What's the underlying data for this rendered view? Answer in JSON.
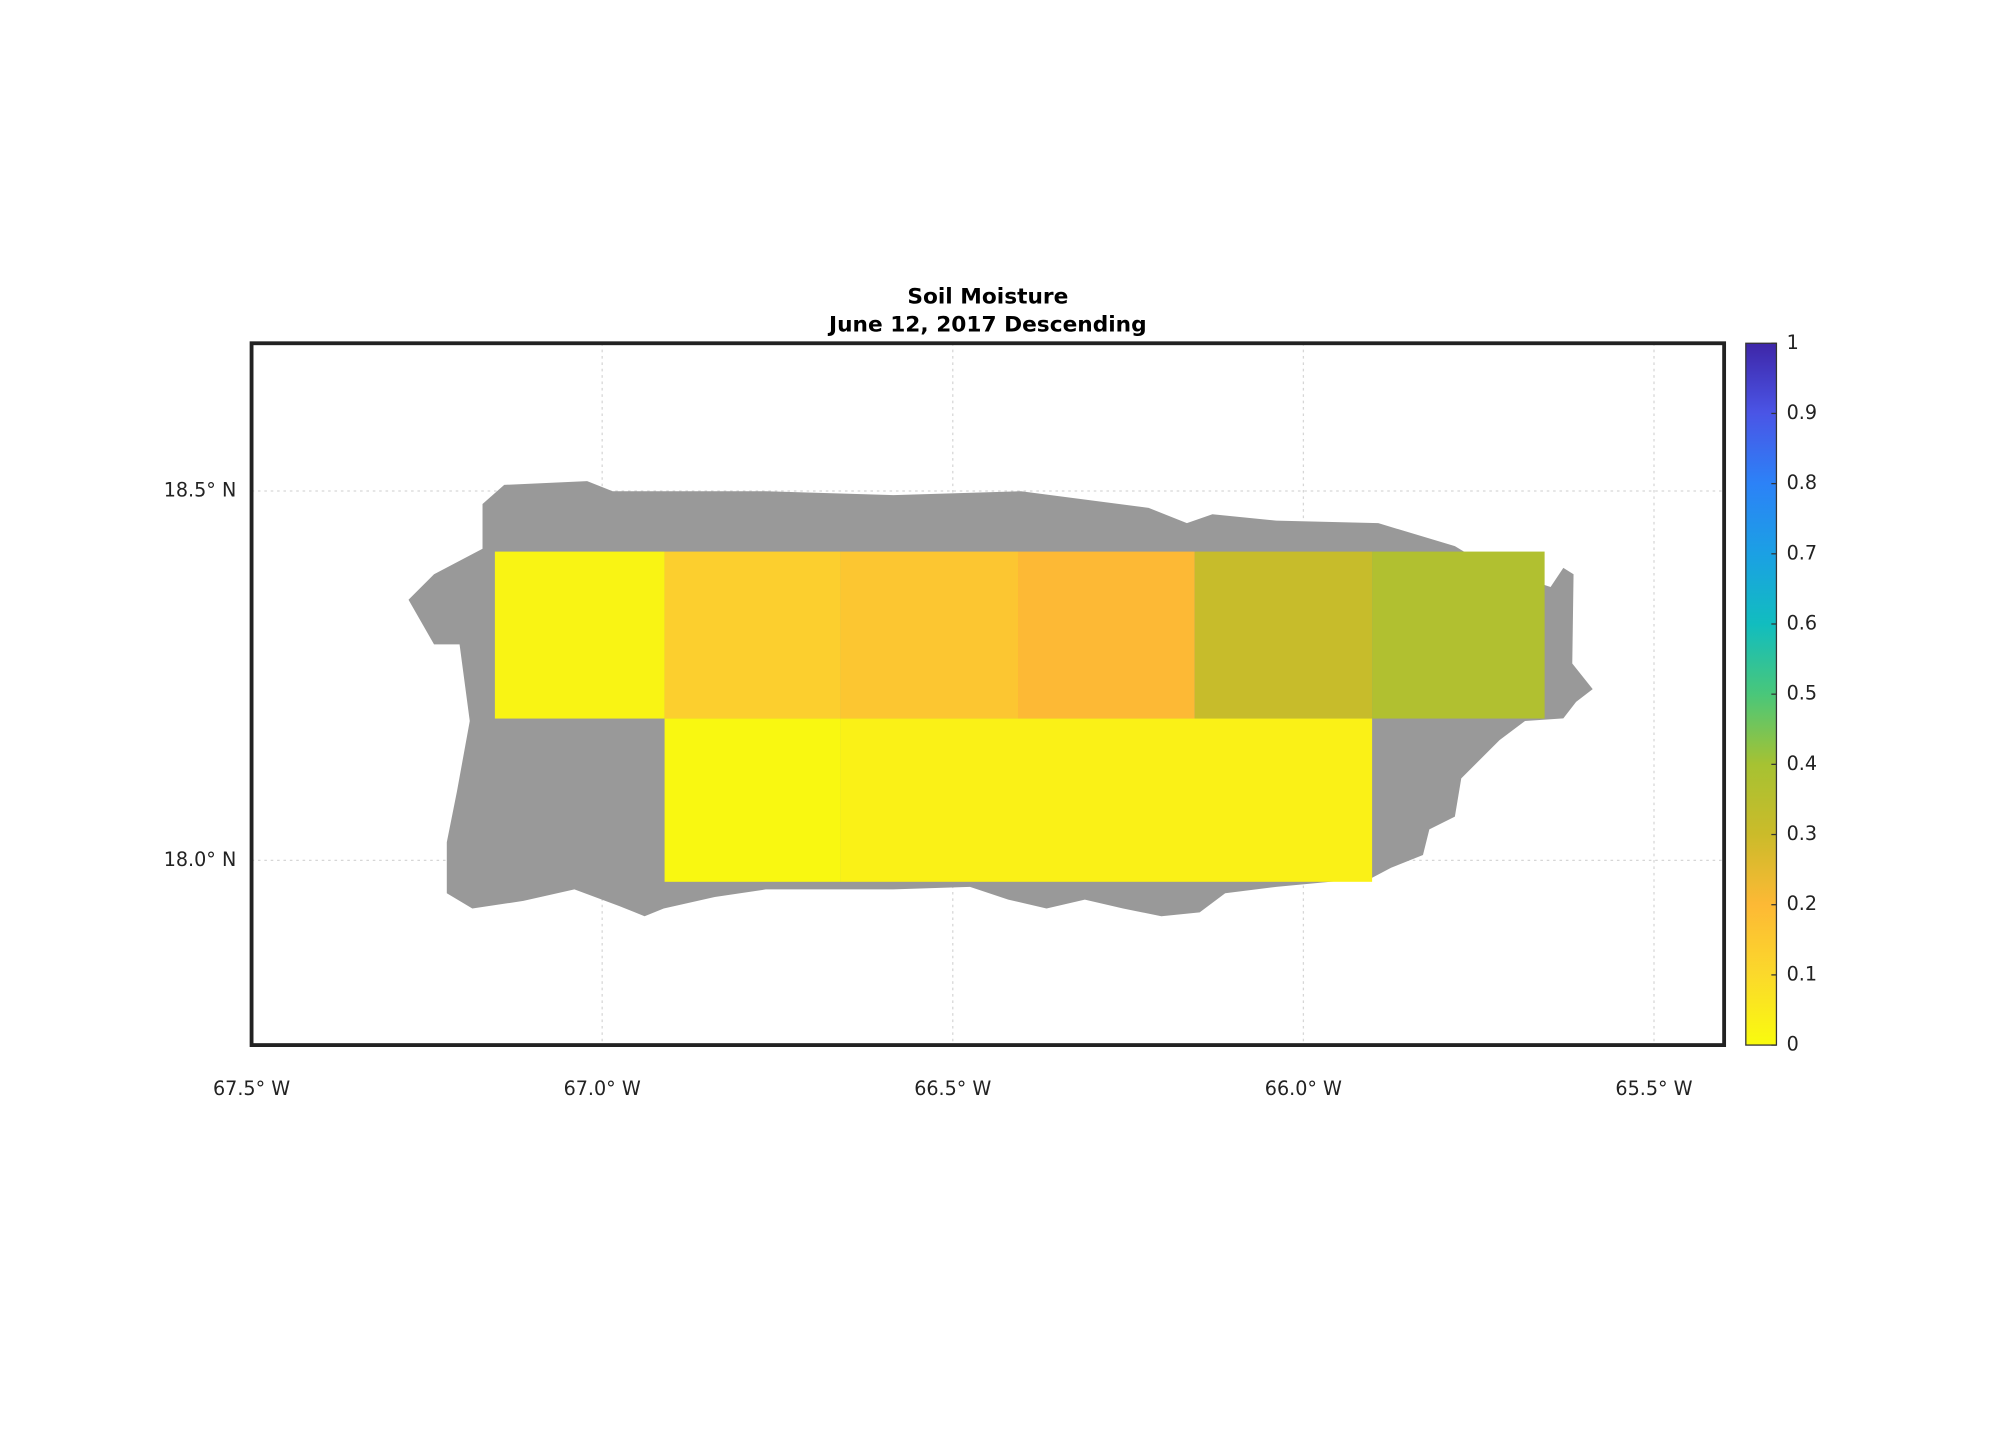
{
  "chart_data": {
    "type": "heatmap",
    "title": "Soil Moisture",
    "subtitle": "June 12, 2017 Descending",
    "xlim": [
      -67.5,
      -65.4
    ],
    "ylim": [
      17.75,
      18.7
    ],
    "xticks": [
      {
        "value": -67.5,
        "label": "67.5° W"
      },
      {
        "value": -67.0,
        "label": "67.0° W"
      },
      {
        "value": -66.5,
        "label": "66.5° W"
      },
      {
        "value": -66.0,
        "label": "66.0° W"
      },
      {
        "value": -65.5,
        "label": "65.5° W"
      }
    ],
    "yticks": [
      {
        "value": 18.0,
        "label": "18.0° N"
      },
      {
        "value": 18.5,
        "label": "18.5° N"
      }
    ],
    "grid": true,
    "cells": [
      {
        "lon": [
          -67.153,
          -66.911
        ],
        "lat": [
          18.192,
          18.418
        ],
        "value": 0.02
      },
      {
        "lon": [
          -66.911,
          -66.66
        ],
        "lat": [
          18.192,
          18.418
        ],
        "value": 0.13
      },
      {
        "lon": [
          -66.66,
          -66.407
        ],
        "lat": [
          18.192,
          18.418
        ],
        "value": 0.16
      },
      {
        "lon": [
          -66.407,
          -66.155
        ],
        "lat": [
          18.192,
          18.418
        ],
        "value": 0.2
      },
      {
        "lon": [
          -66.155,
          -65.902
        ],
        "lat": [
          18.192,
          18.418
        ],
        "value": 0.31
      },
      {
        "lon": [
          -65.902,
          -65.656
        ],
        "lat": [
          18.192,
          18.418
        ],
        "value": 0.37
      },
      {
        "lon": [
          -66.911,
          -66.66
        ],
        "lat": [
          17.971,
          18.192
        ],
        "value": 0.01
      },
      {
        "lon": [
          -66.66,
          -65.902
        ],
        "lat": [
          17.971,
          18.192
        ],
        "value": 0.03
      }
    ],
    "clim": [
      0,
      1
    ],
    "cticks": [
      0,
      0.1,
      0.2,
      0.3,
      0.4,
      0.5,
      0.6,
      0.7,
      0.8,
      0.9,
      1
    ],
    "colormap": [
      "#f9fb0e",
      "#fbd92b",
      "#fdb935",
      "#cbbb2a",
      "#a6c232",
      "#49c77a",
      "#11bdbf",
      "#1ba0e4",
      "#2c82f7",
      "#4a55e6",
      "#3e26a8"
    ]
  }
}
